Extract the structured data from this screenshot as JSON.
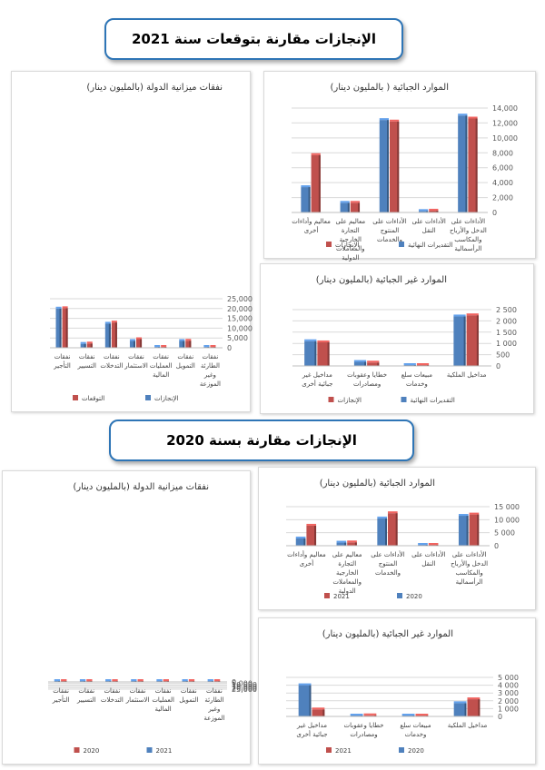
{
  "banners": {
    "top": "الإنجازات مقارنة بتوقعات سنة 2021",
    "middle": "الإنجازات مقارنة بسنة 2020"
  },
  "colors": {
    "blue": "#4f81bd",
    "red": "#c0504d",
    "gridline": "#d9d9d9",
    "axis_text": "#595959"
  },
  "chart_data": [
    {
      "id": "c1",
      "type": "bar",
      "title": "نفقات ميزانية الدولة (بالمليون دينار)",
      "categories": [
        "نفقات الطارئة وغير الموزعة",
        "نفقات التمويل",
        "نفقات العمليات المالية",
        "نفقات الاستثمار",
        "نفقات التدخلات",
        "نفقات التسيير",
        "نفقات التأجير"
      ],
      "series": [
        {
          "name": "الإنجازات",
          "color": "#4f81bd",
          "values": [
            0,
            3500,
            200,
            3500,
            12300,
            2000,
            20000
          ]
        },
        {
          "name": "التوقعات",
          "color": "#c0504d",
          "values": [
            0,
            3600,
            200,
            4400,
            12900,
            2200,
            20200
          ]
        }
      ],
      "yticks": [
        0,
        5000,
        10000,
        15000,
        20000,
        25000
      ],
      "ytick_labels": [
        "0",
        "5,000",
        "10,000",
        "15,000",
        "20,000",
        "25,000"
      ],
      "ylim": [
        0,
        25000
      ],
      "legend": "bottom"
    },
    {
      "id": "c2",
      "type": "bar",
      "title": "الموارد الجبائية ( بالمليون دينار)",
      "categories": [
        "الأداءات على الدخل والأرباح والمكاسب الرأسمالية",
        "الأداءات على النقل",
        "الأداءات على المنتوج والخدمات",
        "معاليم على التجارة الخارجية والمعاملات الدولية",
        "معاليم وأداءات أخرى"
      ],
      "series": [
        {
          "name": "التقديرات النهائية",
          "color": "#4f81bd",
          "values": [
            13000,
            200,
            12400,
            1300,
            3400
          ]
        },
        {
          "name": "الإنجازات",
          "color": "#c0504d",
          "values": [
            12600,
            250,
            12200,
            1300,
            7700
          ]
        }
      ],
      "yticks": [
        0,
        2000,
        4000,
        6000,
        8000,
        10000,
        12000,
        14000
      ],
      "ytick_labels": [
        "0",
        "2,000",
        "4,000",
        "6,000",
        "8,000",
        "10,000",
        "12,000",
        "14,000"
      ],
      "ylim": [
        0,
        14000
      ],
      "legend": "bottom"
    },
    {
      "id": "c3",
      "type": "bar",
      "title": "الموارد غير الجبائية (بالمليون دينار)",
      "categories": [
        "مداخيل الملكية",
        "مبيعات سلع وخدمات",
        "خطايا وعقوبات ومصادرات",
        "مداخيل غير جبائية أخرى"
      ],
      "series": [
        {
          "name": "التقديرات النهائية",
          "color": "#4f81bd",
          "values": [
            2200,
            20,
            180,
            1100
          ]
        },
        {
          "name": "الإنجازات",
          "color": "#c0504d",
          "values": [
            2250,
            20,
            150,
            1050
          ]
        }
      ],
      "yticks": [
        0,
        500,
        1000,
        1500,
        2000,
        2500
      ],
      "ytick_labels": [
        "0",
        "500",
        "1 000",
        "1 500",
        "2 000",
        "2 500"
      ],
      "ylim": [
        0,
        2500
      ],
      "legend": "bottom"
    },
    {
      "id": "c4",
      "type": "bar",
      "title": "نفقات ميزانية الدولة (بالمليون دينار)",
      "categories": [
        "نفقات الطارئة وغير الموزعة",
        "نفقات التمويل",
        "نفقات العمليات المالية",
        "نفقات الاستثمار",
        "نفقات التدخلات",
        "نفقات التسيير",
        "نفقات التأجير"
      ],
      "series": [
        {
          "name": "2021",
          "color": "#4f81bd",
          "values": [
            0,
            3400,
            200,
            3400,
            12300,
            2000,
            19800
          ]
        },
        {
          "name": "2020",
          "color": "#c0504d",
          "values": [
            0,
            3500,
            0,
            3800,
            10800,
            2200,
            18800
          ]
        }
      ],
      "yticks": [
        0,
        5000,
        10000,
        15000,
        20000,
        25000
      ],
      "ytick_labels": [
        "0",
        "5,000",
        "10,000",
        "15,000",
        "20,000",
        "25,000"
      ],
      "ylim": [
        0,
        25000
      ],
      "legend": "bottom"
    },
    {
      "id": "c5",
      "type": "bar",
      "title": "الموارد الجبائية (بالمليون دينار)",
      "categories": [
        "الأداءات على الدخل والأرباح والمكاسب الرأسمالية",
        "الأداءات على النقل",
        "الأداءات على المنتوج والخدمات",
        "معاليم على التجارة الخارجية والمعاملات الدولية",
        "معاليم وأداءات أخرى"
      ],
      "series": [
        {
          "name": "2020",
          "color": "#4f81bd",
          "values": [
            11500,
            200,
            10500,
            1200,
            2800
          ]
        },
        {
          "name": "2021",
          "color": "#c0504d",
          "values": [
            12000,
            250,
            12500,
            1300,
            7700
          ]
        }
      ],
      "yticks": [
        0,
        5000,
        10000,
        15000
      ],
      "ytick_labels": [
        "0",
        "5 000",
        "10 000",
        "15 000"
      ],
      "ylim": [
        0,
        15000
      ],
      "legend": "bottom"
    },
    {
      "id": "c6",
      "type": "bar",
      "title": "الموارد غير الجبائية (بالمليون دينار)",
      "categories": [
        "مداخيل الملكية",
        "مبيعات سلع وخدمات",
        "خطايا وعقوبات ومصادرات",
        "مداخيل غير جبائية أخرى"
      ],
      "series": [
        {
          "name": "2020",
          "color": "#4f81bd",
          "values": [
            1700,
            20,
            100,
            4000
          ]
        },
        {
          "name": "2021",
          "color": "#c0504d",
          "values": [
            2200,
            20,
            150,
            900
          ]
        }
      ],
      "yticks": [
        0,
        1000,
        2000,
        3000,
        4000,
        5000
      ],
      "ytick_labels": [
        "0",
        "1 000",
        "2 000",
        "3 000",
        "4 000",
        "5 000"
      ],
      "ylim": [
        0,
        5000
      ],
      "legend": "bottom"
    }
  ]
}
